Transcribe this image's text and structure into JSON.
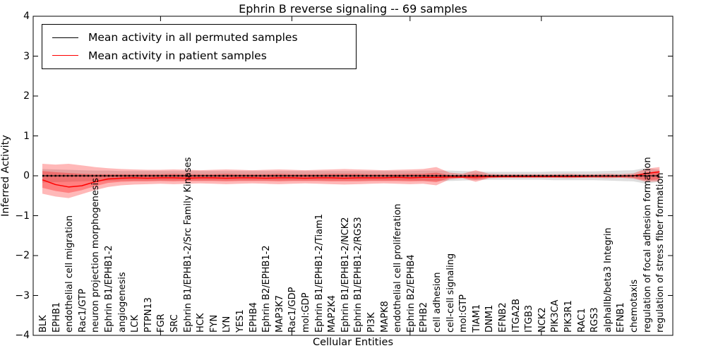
{
  "chart_data": {
    "type": "line",
    "title": "Ephrin B reverse signaling -- 69 samples",
    "xlabel": "Cellular Entities",
    "ylabel": "Inferred Activity",
    "ylim": [
      -4,
      4
    ],
    "grid": false,
    "yticks": [
      4,
      3,
      2,
      1,
      0,
      -1,
      -2,
      -3,
      -4
    ],
    "ytick_labels": [
      "4",
      "3",
      "2",
      "1",
      "0",
      "−1",
      "−2",
      "−3",
      "−4"
    ],
    "xticks_at_category_index": [
      9,
      19,
      28,
      38
    ],
    "legend": {
      "position": "upper left",
      "entries": [
        {
          "label": "Mean activity in all permuted samples",
          "color": "#000000"
        },
        {
          "label": "Mean activity in patient samples",
          "color": "#ff0000"
        }
      ]
    },
    "categories": [
      "BLK",
      "EPHB1",
      "endothelial cell migration",
      "Rac1/GTP",
      "neuron projection morphogenesis",
      "Ephrin B1/EPHB1-2",
      "angiogenesis",
      "LCK",
      "PTPN13",
      "FGR",
      "SRC",
      "Ephrin B1/EPHB1-2/Src Family Kinases",
      "HCK",
      "FYN",
      "LYN",
      "YES1",
      "EPHB4",
      "Ephrin B2/EPHB1-2",
      "MAP3K7",
      "Rac1/GDP",
      "mol:GDP",
      "Ephrin B1/EPHB1-2/Tiam1",
      "MAP2K4",
      "Ephrin B1/EPHB1-2/NCK2",
      "Ephrin B1/EPHB1-2/RGS3",
      "PI3K",
      "MAPK8",
      "endothelial cell proliferation",
      "Ephrin B2/EPHB4",
      "EPHB2",
      "cell adhesion",
      "cell-cell signaling",
      "mol:GTP",
      "TIAM1",
      "DNM1",
      "EFNB2",
      "ITGA2B",
      "ITGB3",
      "NCK2",
      "PIK3CA",
      "PIK3R1",
      "RAC1",
      "RGS3",
      "alphaIIb/beta3 Integrin",
      "EFNB1",
      "chemotaxis",
      "regulation of focal adhesion formation",
      "regulation of stress fiber formation"
    ],
    "series": [
      {
        "name": "Mean activity in all permuted samples",
        "color": "#000000",
        "style": "solid with short dash markers",
        "values": [
          0,
          0,
          0,
          0,
          0,
          0,
          0,
          0,
          0,
          0,
          0,
          0,
          0,
          0,
          0,
          0,
          0,
          0,
          0,
          0,
          0,
          0,
          0,
          0,
          0,
          0,
          0,
          0,
          0,
          0,
          0,
          0,
          0,
          0,
          0,
          0,
          0,
          0,
          0,
          0,
          0,
          0,
          0,
          0,
          0,
          0,
          0,
          0
        ]
      },
      {
        "name": "Mean activity in patient samples",
        "color": "#ff0000",
        "style": "solid",
        "values": [
          -0.1,
          -0.22,
          -0.28,
          -0.25,
          -0.15,
          -0.08,
          -0.06,
          -0.05,
          -0.06,
          -0.05,
          -0.05,
          -0.06,
          -0.05,
          -0.05,
          -0.06,
          -0.05,
          -0.05,
          -0.06,
          -0.05,
          -0.05,
          -0.06,
          -0.05,
          -0.05,
          -0.06,
          -0.05,
          -0.05,
          -0.05,
          -0.04,
          -0.05,
          -0.04,
          -0.04,
          -0.03,
          -0.03,
          -0.03,
          -0.02,
          -0.02,
          -0.02,
          -0.02,
          -0.02,
          -0.02,
          -0.02,
          -0.02,
          -0.01,
          -0.01,
          -0.01,
          0.0,
          0.06,
          0.1
        ]
      }
    ],
    "bands": [
      {
        "name": "permuted-samples-spread",
        "fill": "rgba(0,0,0,0.13)",
        "upper": [
          0.17,
          0.16,
          0.15,
          0.14,
          0.13,
          0.13,
          0.12,
          0.12,
          0.12,
          0.12,
          0.12,
          0.12,
          0.12,
          0.12,
          0.12,
          0.12,
          0.12,
          0.12,
          0.12,
          0.12,
          0.12,
          0.12,
          0.12,
          0.12,
          0.12,
          0.12,
          0.12,
          0.12,
          0.12,
          0.13,
          0.13,
          0.13,
          0.12,
          0.11,
          0.1,
          0.1,
          0.1,
          0.1,
          0.1,
          0.11,
          0.11,
          0.11,
          0.11,
          0.12,
          0.13,
          0.14,
          0.2,
          0.15
        ],
        "lower": [
          -0.17,
          -0.16,
          -0.15,
          -0.14,
          -0.13,
          -0.13,
          -0.12,
          -0.12,
          -0.12,
          -0.12,
          -0.12,
          -0.12,
          -0.12,
          -0.12,
          -0.12,
          -0.12,
          -0.12,
          -0.12,
          -0.12,
          -0.12,
          -0.12,
          -0.12,
          -0.12,
          -0.12,
          -0.12,
          -0.12,
          -0.12,
          -0.12,
          -0.12,
          -0.13,
          -0.13,
          -0.13,
          -0.12,
          -0.11,
          -0.1,
          -0.1,
          -0.1,
          -0.1,
          -0.1,
          -0.11,
          -0.11,
          -0.11,
          -0.11,
          -0.12,
          -0.13,
          -0.14,
          -0.2,
          -0.15
        ]
      },
      {
        "name": "patient-samples-spread-outer",
        "fill": "rgba(255,0,0,0.28)",
        "upper": [
          0.3,
          0.28,
          0.3,
          0.26,
          0.22,
          0.19,
          0.17,
          0.16,
          0.15,
          0.15,
          0.16,
          0.15,
          0.14,
          0.15,
          0.16,
          0.15,
          0.14,
          0.15,
          0.16,
          0.15,
          0.14,
          0.15,
          0.16,
          0.17,
          0.16,
          0.15,
          0.14,
          0.15,
          0.16,
          0.17,
          0.22,
          0.08,
          0.05,
          0.14,
          0.05,
          0.04,
          0.04,
          0.04,
          0.04,
          0.04,
          0.05,
          0.04,
          0.04,
          0.05,
          0.04,
          0.06,
          0.18,
          0.22
        ],
        "lower": [
          -0.45,
          -0.52,
          -0.56,
          -0.46,
          -0.36,
          -0.28,
          -0.24,
          -0.22,
          -0.21,
          -0.2,
          -0.21,
          -0.2,
          -0.19,
          -0.2,
          -0.21,
          -0.2,
          -0.19,
          -0.2,
          -0.21,
          -0.2,
          -0.19,
          -0.2,
          -0.21,
          -0.22,
          -0.21,
          -0.2,
          -0.19,
          -0.2,
          -0.21,
          -0.2,
          -0.24,
          -0.09,
          -0.06,
          -0.15,
          -0.06,
          -0.05,
          -0.05,
          -0.05,
          -0.05,
          -0.05,
          -0.06,
          -0.05,
          -0.05,
          -0.06,
          -0.05,
          -0.07,
          -0.15,
          -0.14
        ]
      },
      {
        "name": "patient-samples-spread-inner",
        "fill": "rgba(255,0,0,0.30)",
        "upper": [
          0.12,
          0.09,
          0.07,
          0.05,
          0.04,
          0.04,
          0.04,
          0.04,
          0.04,
          0.04,
          0.05,
          0.04,
          0.04,
          0.04,
          0.05,
          0.04,
          0.04,
          0.04,
          0.05,
          0.04,
          0.04,
          0.04,
          0.05,
          0.05,
          0.05,
          0.04,
          0.04,
          0.04,
          0.05,
          0.05,
          0.08,
          0.02,
          0.01,
          0.05,
          0.01,
          0.01,
          0.01,
          0.01,
          0.01,
          0.01,
          0.01,
          0.01,
          0.01,
          0.01,
          0.01,
          0.02,
          0.08,
          0.12
        ],
        "lower": [
          -0.3,
          -0.38,
          -0.43,
          -0.36,
          -0.26,
          -0.18,
          -0.15,
          -0.14,
          -0.14,
          -0.13,
          -0.14,
          -0.13,
          -0.13,
          -0.13,
          -0.14,
          -0.13,
          -0.13,
          -0.13,
          -0.14,
          -0.13,
          -0.13,
          -0.13,
          -0.14,
          -0.14,
          -0.14,
          -0.13,
          -0.13,
          -0.13,
          -0.14,
          -0.13,
          -0.16,
          -0.06,
          -0.05,
          -0.09,
          -0.05,
          -0.04,
          -0.04,
          -0.04,
          -0.04,
          -0.04,
          -0.04,
          -0.04,
          -0.04,
          -0.04,
          -0.04,
          -0.05,
          -0.11,
          -0.09
        ]
      }
    ]
  }
}
